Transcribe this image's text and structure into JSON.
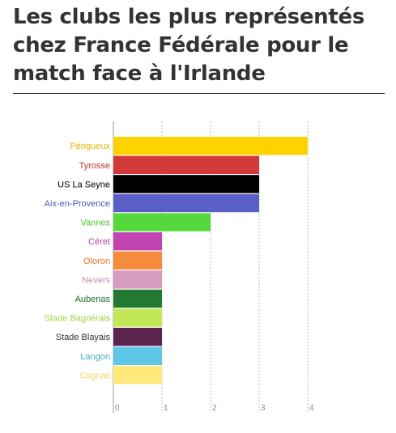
{
  "title": "Les clubs les plus représentés chez France Fédérale pour le match face à l'Irlande",
  "chart_data": {
    "type": "bar",
    "orientation": "horizontal",
    "title": "Les clubs les plus représentés chez France Fédérale pour le match face à l'Irlande",
    "categories": [
      "Périgueux",
      "Tyrosse",
      "US La Seyne",
      "Aix-en-Provence",
      "Vannes",
      "Céret",
      "Oloron",
      "Nevers",
      "Aubenas",
      "Stade Bagnérais",
      "Stade Blayais",
      "Langon",
      "Cognac"
    ],
    "values": [
      4,
      3,
      3,
      3,
      2,
      1,
      1,
      1,
      1,
      1,
      1,
      1,
      1
    ],
    "colors": [
      "#ffd200",
      "#d23a3a",
      "#000000",
      "#5a5fc8",
      "#55d93a",
      "#c146b4",
      "#f48c3c",
      "#d89bc0",
      "#237a31",
      "#c2e85a",
      "#5a244f",
      "#5cc8e6",
      "#ffe87a"
    ],
    "label_colors": [
      "#e8b800",
      "#c43030",
      "#000000",
      "#5156b8",
      "#4cc730",
      "#b43fa6",
      "#e5762a",
      "#c98cb0",
      "#1e6a2b",
      "#a8d048",
      "#333333",
      "#40aed4",
      "#f2d45a"
    ],
    "xlim": [
      0,
      4
    ],
    "xticks": [
      0,
      1,
      2,
      3,
      4
    ],
    "grid": true,
    "xlabel": "",
    "ylabel": ""
  }
}
